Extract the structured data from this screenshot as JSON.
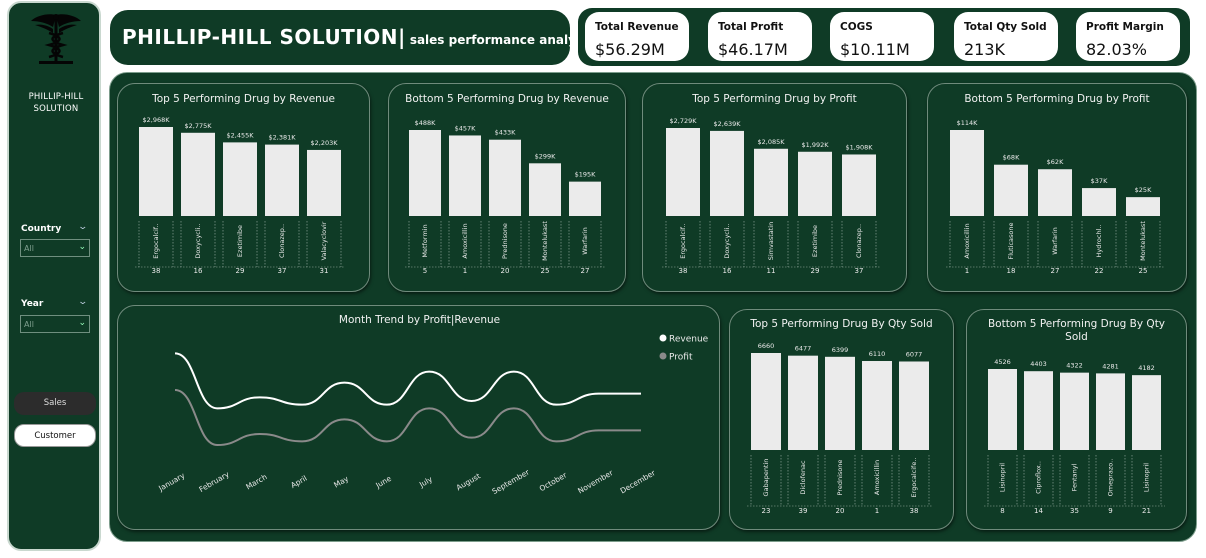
{
  "brand": {
    "name_line1": "PHILLIP-HILL",
    "name_line2": "SOLUTION"
  },
  "filters": [
    {
      "label": "Country",
      "value": "All"
    },
    {
      "label": "Year",
      "value": "All"
    }
  ],
  "nav": {
    "sales": "Sales",
    "customer": "Customer"
  },
  "header": {
    "title": "PHILLIP-HILL SOLUTION|",
    "subtitle": "sales performance analysis"
  },
  "kpis": [
    {
      "label": "Total Revenue",
      "value": "$56.29M"
    },
    {
      "label": "Total Profit",
      "value": "$46.17M"
    },
    {
      "label": "COGS",
      "value": "$10.11M"
    },
    {
      "label": "Total Qty Sold",
      "value": "213K"
    },
    {
      "label": "Profit Margin",
      "value": "82.03%"
    }
  ],
  "colors": {
    "background": "#0f3b26",
    "bar": "#ebebeb",
    "revenue_line": "#ffffff",
    "profit_line": "#8a8a8a"
  },
  "chart_data": [
    {
      "type": "bar",
      "title": "Top 5 Performing Drug by Revenue",
      "categories": [
        "Ergocalcif..",
        "Doxycycli..",
        "Ezetimibe",
        "Clonazep..",
        "Valacyclovir"
      ],
      "codes": [
        "38",
        "16",
        "29",
        "37",
        "31"
      ],
      "values": [
        2968,
        2775,
        2455,
        2381,
        2203
      ],
      "labels": [
        "$2,968K",
        "$2,775K",
        "$2,455K",
        "$2,381K",
        "$2,203K"
      ]
    },
    {
      "type": "bar",
      "title": "Bottom 5 Performing Drug by Revenue",
      "categories": [
        "Metformin",
        "Amoxicillin",
        "Prednisone",
        "Montelukast",
        "Warfarin"
      ],
      "codes": [
        "5",
        "1",
        "20",
        "25",
        "27"
      ],
      "values": [
        488,
        457,
        433,
        299,
        195
      ],
      "labels": [
        "$488K",
        "$457K",
        "$433K",
        "$299K",
        "$195K"
      ]
    },
    {
      "type": "bar",
      "title": "Top 5 Performing Drug by Profit",
      "categories": [
        "Ergocalcif..",
        "Doxycycli..",
        "Simvastatin",
        "Ezetimibe",
        "Clonazep.."
      ],
      "codes": [
        "38",
        "16",
        "11",
        "29",
        "37"
      ],
      "values": [
        2729,
        2639,
        2085,
        1992,
        1908
      ],
      "labels": [
        "$2,729K",
        "$2,639K",
        "$2,085K",
        "$1,992K",
        "$1,908K"
      ]
    },
    {
      "type": "bar",
      "title": "Bottom 5 Performing Drug by Profit",
      "categories": [
        "Amoxicillin",
        "Fluticasone",
        "Warfarin",
        "Hydrochl..",
        "Montelukast"
      ],
      "codes": [
        "1",
        "18",
        "27",
        "22",
        "25"
      ],
      "values": [
        114,
        68,
        62,
        37,
        25
      ],
      "labels": [
        "$114K",
        "$68K",
        "$62K",
        "$37K",
        "$25K"
      ]
    },
    {
      "type": "line",
      "title": "Month Trend by Profit|Revenue",
      "categories": [
        "January",
        "February",
        "March",
        "April",
        "May",
        "June",
        "July",
        "August",
        "September",
        "October",
        "November",
        "December"
      ],
      "series": [
        {
          "name": "Revenue",
          "values": [
            5.8,
            4.3,
            4.6,
            4.4,
            5.0,
            4.4,
            5.3,
            4.5,
            5.3,
            4.4,
            4.7,
            4.7
          ]
        },
        {
          "name": "Profit",
          "values": [
            4.8,
            3.3,
            3.6,
            3.4,
            4.0,
            3.4,
            4.3,
            3.5,
            4.3,
            3.4,
            3.7,
            3.7
          ]
        }
      ],
      "legend": "top-right"
    },
    {
      "type": "bar",
      "title": "Top 5 Performing Drug By Qty Sold",
      "categories": [
        "Gabapentin",
        "Diclofenac",
        "Prednisone",
        "Amoxicillin",
        "Ergocalcife.."
      ],
      "codes": [
        "23",
        "39",
        "20",
        "1",
        "38"
      ],
      "values": [
        6660,
        6477,
        6399,
        6110,
        6077
      ],
      "labels": [
        "6660",
        "6477",
        "6399",
        "6110",
        "6077"
      ]
    },
    {
      "type": "bar",
      "title": "Bottom 5 Performing Drug By Qty Sold",
      "categories": [
        "Lisinopril",
        "Ciproflox..",
        "Fentanyl",
        "Omeprazo..",
        "Lisinopril"
      ],
      "codes": [
        "8",
        "14",
        "35",
        "9",
        "21"
      ],
      "values": [
        4526,
        4403,
        4322,
        4281,
        4182
      ],
      "labels": [
        "4526",
        "4403",
        "4322",
        "4281",
        "4182"
      ]
    }
  ]
}
